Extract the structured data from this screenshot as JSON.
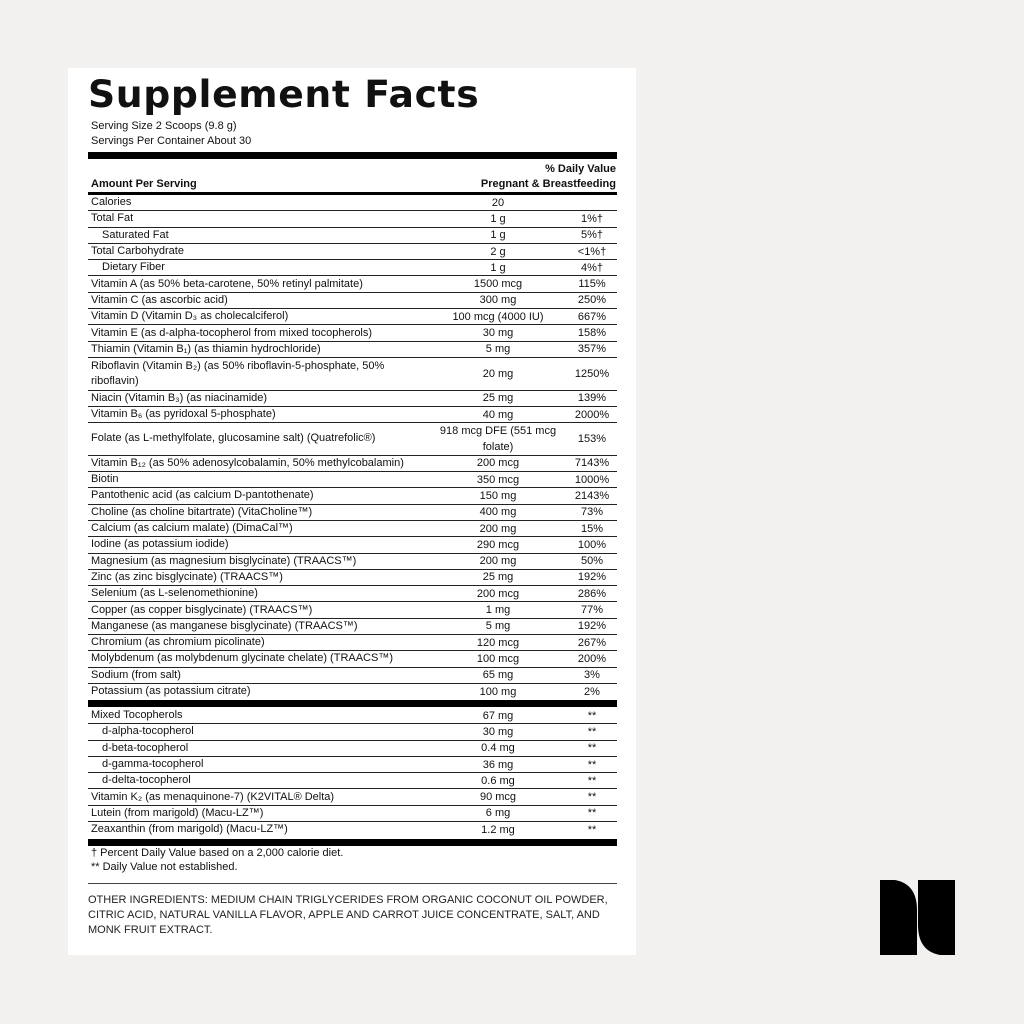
{
  "title": "Supplement Facts",
  "serving_size": "Serving Size 2 Scoops (9.8 g)",
  "servings_per_container": "Servings Per Container About 30",
  "header": {
    "amount_per_serving": "Amount Per Serving",
    "daily_value": "% Daily Value",
    "population": "Pregnant & Breastfeeding"
  },
  "nutrients": [
    {
      "name": "Calories",
      "amount": "20",
      "dv": ""
    },
    {
      "name": "Total Fat",
      "amount": "1 g",
      "dv": "1%†"
    },
    {
      "name": "Saturated Fat",
      "amount": "1 g",
      "dv": "5%†",
      "indent": true
    },
    {
      "name": "Total Carbohydrate",
      "amount": "2 g",
      "dv": "<1%†"
    },
    {
      "name": "Dietary Fiber",
      "amount": "1 g",
      "dv": "4%†",
      "indent": true
    },
    {
      "name": "Vitamin A (as 50% beta-carotene, 50% retinyl palmitate)",
      "amount": "1500 mcg",
      "dv": "115%"
    },
    {
      "name": "Vitamin C (as ascorbic acid)",
      "amount": "300 mg",
      "dv": "250%"
    },
    {
      "name": "Vitamin D (Vitamin D₃ as cholecalciferol)",
      "amount": "100 mcg (4000 IU)",
      "dv": "667%"
    },
    {
      "name": "Vitamin E (as d-alpha-tocopherol from mixed tocopherols)",
      "amount": "30 mg",
      "dv": "158%"
    },
    {
      "name": "Thiamin (Vitamin B₁) (as thiamin hydrochloride)",
      "amount": "5 mg",
      "dv": "357%"
    },
    {
      "name": "Riboflavin (Vitamin B₂) (as 50% riboflavin-5-phosphate, 50% riboflavin)",
      "amount": "20 mg",
      "dv": "1250%",
      "tall": true
    },
    {
      "name": "Niacin (Vitamin B₃) (as niacinamide)",
      "amount": "25 mg",
      "dv": "139%"
    },
    {
      "name": "Vitamin B₆ (as pyridoxal 5-phosphate)",
      "amount": "40 mg",
      "dv": "2000%"
    },
    {
      "name": "Folate (as L-methylfolate, glucosamine salt) (Quatrefolic®)",
      "amount": "918 mcg DFE (551 mcg folate)",
      "dv": "153%",
      "tall": true
    },
    {
      "name": "Vitamin B₁₂ (as 50% adenosylcobalamin, 50% methylcobalamin)",
      "amount": "200 mcg",
      "dv": "7143%"
    },
    {
      "name": "Biotin",
      "amount": "350 mcg",
      "dv": "1000%"
    },
    {
      "name": "Pantothenic acid (as calcium D-pantothenate)",
      "amount": "150 mg",
      "dv": "2143%"
    },
    {
      "name": "Choline (as choline bitartrate) (VitaCholine™)",
      "amount": "400 mg",
      "dv": "73%"
    },
    {
      "name": "Calcium (as calcium malate) (DimaCal™)",
      "amount": "200 mg",
      "dv": "15%"
    },
    {
      "name": "Iodine (as potassium iodide)",
      "amount": "290 mcg",
      "dv": "100%"
    },
    {
      "name": "Magnesium (as magnesium bisglycinate) (TRAACS™)",
      "amount": "200 mg",
      "dv": "50%"
    },
    {
      "name": "Zinc (as zinc bisglycinate) (TRAACS™)",
      "amount": "25 mg",
      "dv": "192%"
    },
    {
      "name": "Selenium (as L-selenomethionine)",
      "amount": "200 mcg",
      "dv": "286%"
    },
    {
      "name": "Copper (as copper bisglycinate) (TRAACS™)",
      "amount": "1 mg",
      "dv": "77%"
    },
    {
      "name": "Manganese (as manganese bisglycinate) (TRAACS™)",
      "amount": "5 mg",
      "dv": "192%"
    },
    {
      "name": "Chromium (as chromium picolinate)",
      "amount": "120 mcg",
      "dv": "267%"
    },
    {
      "name": "Molybdenum (as molybdenum glycinate chelate) (TRAACS™)",
      "amount": "100 mcg",
      "dv": "200%"
    },
    {
      "name": "Sodium (from salt)",
      "amount": "65 mg",
      "dv": "3%"
    },
    {
      "name": "Potassium (as potassium citrate)",
      "amount": "100 mg",
      "dv": "2%"
    }
  ],
  "other_nutrients": [
    {
      "name": "Mixed Tocopherols",
      "amount": "67 mg",
      "dv": "**"
    },
    {
      "name": "d-alpha-tocopherol",
      "amount": "30 mg",
      "dv": "**",
      "indent": true
    },
    {
      "name": "d-beta-tocopherol",
      "amount": "0.4 mg",
      "dv": "**",
      "indent": true
    },
    {
      "name": "d-gamma-tocopherol",
      "amount": "36 mg",
      "dv": "**",
      "indent": true
    },
    {
      "name": "d-delta-tocopherol",
      "amount": "0.6 mg",
      "dv": "**",
      "indent": true
    },
    {
      "name": "Vitamin K₂ (as menaquinone-7) (K2VITAL® Delta)",
      "amount": "90 mcg",
      "dv": "**"
    },
    {
      "name": "Lutein (from marigold) (Macu-LZ™)",
      "amount": "6 mg",
      "dv": "**"
    },
    {
      "name": "Zeaxanthin (from marigold) (Macu-LZ™)",
      "amount": "1.2 mg",
      "dv": "**"
    }
  ],
  "footnotes": [
    "† Percent Daily Value based on a 2,000 calorie diet.",
    "** Daily Value not established."
  ],
  "other_ingredients": "OTHER INGREDIENTS: MEDIUM CHAIN TRIGLYCERIDES FROM ORGANIC COCONUT OIL POWDER, CITRIC ACID, NATURAL VANILLA FLAVOR, APPLE AND CARROT JUICE CONCENTRATE, SALT, AND MONK FRUIT EXTRACT.",
  "logo": {
    "icon": "brand-n-logo",
    "color": "#000000"
  },
  "colors": {
    "background": "#f2f1ef",
    "panel": "#ffffff",
    "text": "#111111"
  }
}
